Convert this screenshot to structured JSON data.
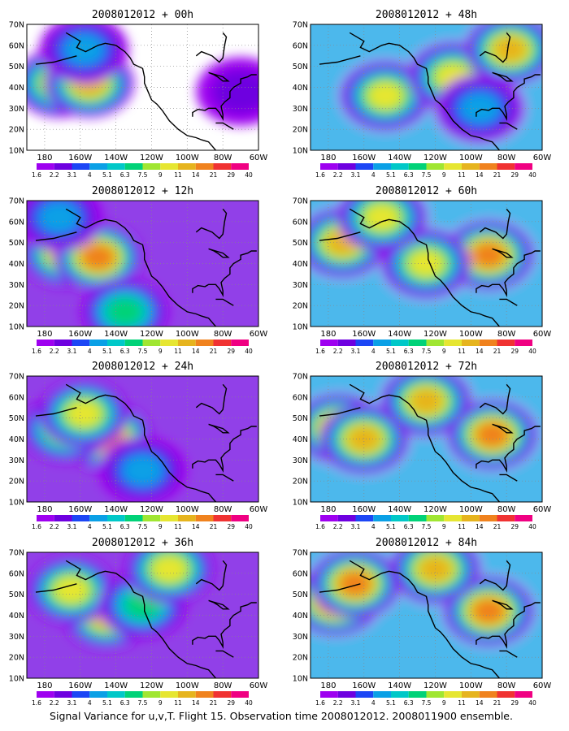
{
  "figure": {
    "caption": "Signal Variance for u,v,T. Flight 15. Observation time 2008012012. 2008011900 ensemble."
  },
  "colors": {
    "scale": [
      "#9e00f0",
      "#6e00e0",
      "#1c46f5",
      "#0aa0e6",
      "#00c8c8",
      "#00d278",
      "#a0e632",
      "#e6e632",
      "#e6b41e",
      "#f0821e",
      "#f03232",
      "#f00082"
    ]
  },
  "chart_data": [
    {
      "type": "heatmap",
      "title": "2008012012 + 00h",
      "x_ticks": [
        "180",
        "160W",
        "140W",
        "120W",
        "100W",
        "80W",
        "60W"
      ],
      "y_ticks": [
        "10N",
        "20N",
        "30N",
        "40N",
        "50N",
        "60N",
        "70N"
      ],
      "colorbar_labels": [
        "1.6",
        "2.2",
        "3.1",
        "4",
        "5.1",
        "6.3",
        "7.5",
        "9",
        "11",
        "14",
        "21",
        "29",
        "40"
      ],
      "features": [
        {
          "lon": 172,
          "lat": 42,
          "value": 9
        },
        {
          "lon": 155,
          "lat": 42,
          "value": 11
        },
        {
          "lon": 158,
          "lat": 58,
          "value": 4
        },
        {
          "lon": 70,
          "lat": 38,
          "value": 2.5
        }
      ]
    },
    {
      "type": "heatmap",
      "title": "2008012012 + 48h",
      "x_ticks": [
        "180",
        "160W",
        "140W",
        "120W",
        "100W",
        "80W",
        "60W"
      ],
      "y_ticks": [
        "10N",
        "20N",
        "30N",
        "40N",
        "50N",
        "60N",
        "70N"
      ],
      "colorbar_labels": [
        "1.6",
        "2.2",
        "3.1",
        "4",
        "5.1",
        "6.3",
        "7.5",
        "9",
        "11",
        "14",
        "21",
        "29",
        "40"
      ],
      "features": [
        {
          "lon": 148,
          "lat": 36,
          "value": 9
        },
        {
          "lon": 110,
          "lat": 45,
          "value": 9
        },
        {
          "lon": 78,
          "lat": 58,
          "value": 11
        },
        {
          "lon": 95,
          "lat": 30,
          "value": 5
        }
      ]
    },
    {
      "type": "heatmap",
      "title": "2008012012 + 12h",
      "x_ticks": [
        "180",
        "160W",
        "140W",
        "120W",
        "100W",
        "80W",
        "60W"
      ],
      "y_ticks": [
        "10N",
        "20N",
        "30N",
        "40N",
        "50N",
        "60N",
        "70N"
      ],
      "colorbar_labels": [
        "1.6",
        "2.2",
        "3.1",
        "4",
        "5.1",
        "6.3",
        "7.5",
        "9",
        "11",
        "14",
        "21",
        "29",
        "40"
      ],
      "features": [
        {
          "lon": 168,
          "lat": 45,
          "value": 11
        },
        {
          "lon": 150,
          "lat": 43,
          "value": 14
        },
        {
          "lon": 135,
          "lat": 17,
          "value": 7
        },
        {
          "lon": 172,
          "lat": 62,
          "value": 5
        }
      ]
    },
    {
      "type": "heatmap",
      "title": "2008012012 + 60h",
      "x_ticks": [
        "180",
        "160W",
        "140W",
        "120W",
        "100W",
        "80W",
        "60W"
      ],
      "y_ticks": [
        "10N",
        "20N",
        "30N",
        "40N",
        "50N",
        "60N",
        "70N"
      ],
      "colorbar_labels": [
        "1.6",
        "2.2",
        "3.1",
        "4",
        "5.1",
        "6.3",
        "7.5",
        "9",
        "11",
        "14",
        "21",
        "29",
        "40"
      ],
      "features": [
        {
          "lon": 172,
          "lat": 50,
          "value": 11
        },
        {
          "lon": 90,
          "lat": 44,
          "value": 14
        },
        {
          "lon": 125,
          "lat": 40,
          "value": 9
        },
        {
          "lon": 150,
          "lat": 62,
          "value": 9
        }
      ]
    },
    {
      "type": "heatmap",
      "title": "2008012012 + 24h",
      "x_ticks": [
        "180",
        "160W",
        "140W",
        "120W",
        "100W",
        "80W",
        "60W"
      ],
      "y_ticks": [
        "10N",
        "20N",
        "30N",
        "40N",
        "50N",
        "60N",
        "70N"
      ],
      "colorbar_labels": [
        "1.6",
        "2.2",
        "3.1",
        "4",
        "5.1",
        "6.3",
        "7.5",
        "9",
        "11",
        "14",
        "21",
        "29",
        "40"
      ],
      "features": [
        {
          "lon": 145,
          "lat": 41,
          "value": 14
        },
        {
          "lon": 168,
          "lat": 45,
          "value": 9
        },
        {
          "lon": 158,
          "lat": 52,
          "value": 9
        },
        {
          "lon": 125,
          "lat": 25,
          "value": 5
        }
      ]
    },
    {
      "type": "heatmap",
      "title": "2008012012 + 72h",
      "x_ticks": [
        "180",
        "160W",
        "140W",
        "120W",
        "100W",
        "80W",
        "60W"
      ],
      "y_ticks": [
        "10N",
        "20N",
        "30N",
        "40N",
        "50N",
        "60N",
        "70N"
      ],
      "colorbar_labels": [
        "1.6",
        "2.2",
        "3.1",
        "4",
        "5.1",
        "6.3",
        "7.5",
        "9",
        "11",
        "14",
        "21",
        "29",
        "40"
      ],
      "features": [
        {
          "lon": 174,
          "lat": 45,
          "value": 14
        },
        {
          "lon": 160,
          "lat": 40,
          "value": 11
        },
        {
          "lon": 88,
          "lat": 42,
          "value": 14
        },
        {
          "lon": 125,
          "lat": 58,
          "value": 11
        }
      ]
    },
    {
      "type": "heatmap",
      "title": "2008012012 + 36h",
      "x_ticks": [
        "180",
        "160W",
        "140W",
        "120W",
        "100W",
        "80W",
        "60W"
      ],
      "y_ticks": [
        "10N",
        "20N",
        "30N",
        "40N",
        "50N",
        "60N",
        "70N"
      ],
      "colorbar_labels": [
        "1.6",
        "2.2",
        "3.1",
        "4",
        "5.1",
        "6.3",
        "7.5",
        "9",
        "11",
        "14",
        "21",
        "29",
        "40"
      ],
      "features": [
        {
          "lon": 145,
          "lat": 40,
          "value": 11
        },
        {
          "lon": 165,
          "lat": 52,
          "value": 9
        },
        {
          "lon": 125,
          "lat": 45,
          "value": 7
        },
        {
          "lon": 110,
          "lat": 62,
          "value": 9
        }
      ]
    },
    {
      "type": "heatmap",
      "title": "2008012012 + 84h",
      "x_ticks": [
        "180",
        "160W",
        "140W",
        "120W",
        "100W",
        "80W",
        "60W"
      ],
      "y_ticks": [
        "10N",
        "20N",
        "30N",
        "40N",
        "50N",
        "60N",
        "70N"
      ],
      "colorbar_labels": [
        "1.6",
        "2.2",
        "3.1",
        "4",
        "5.1",
        "6.3",
        "7.5",
        "9",
        "11",
        "14",
        "21",
        "29",
        "40"
      ],
      "features": [
        {
          "lon": 176,
          "lat": 47,
          "value": 21
        },
        {
          "lon": 165,
          "lat": 55,
          "value": 14
        },
        {
          "lon": 90,
          "lat": 42,
          "value": 14
        },
        {
          "lon": 120,
          "lat": 62,
          "value": 11
        }
      ]
    }
  ]
}
